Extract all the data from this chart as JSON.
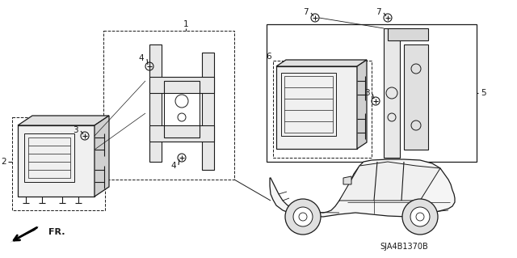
{
  "background_color": "#ffffff",
  "part_code": "SJA4B1370B",
  "line_color": "#1a1a1a",
  "image_data": ""
}
